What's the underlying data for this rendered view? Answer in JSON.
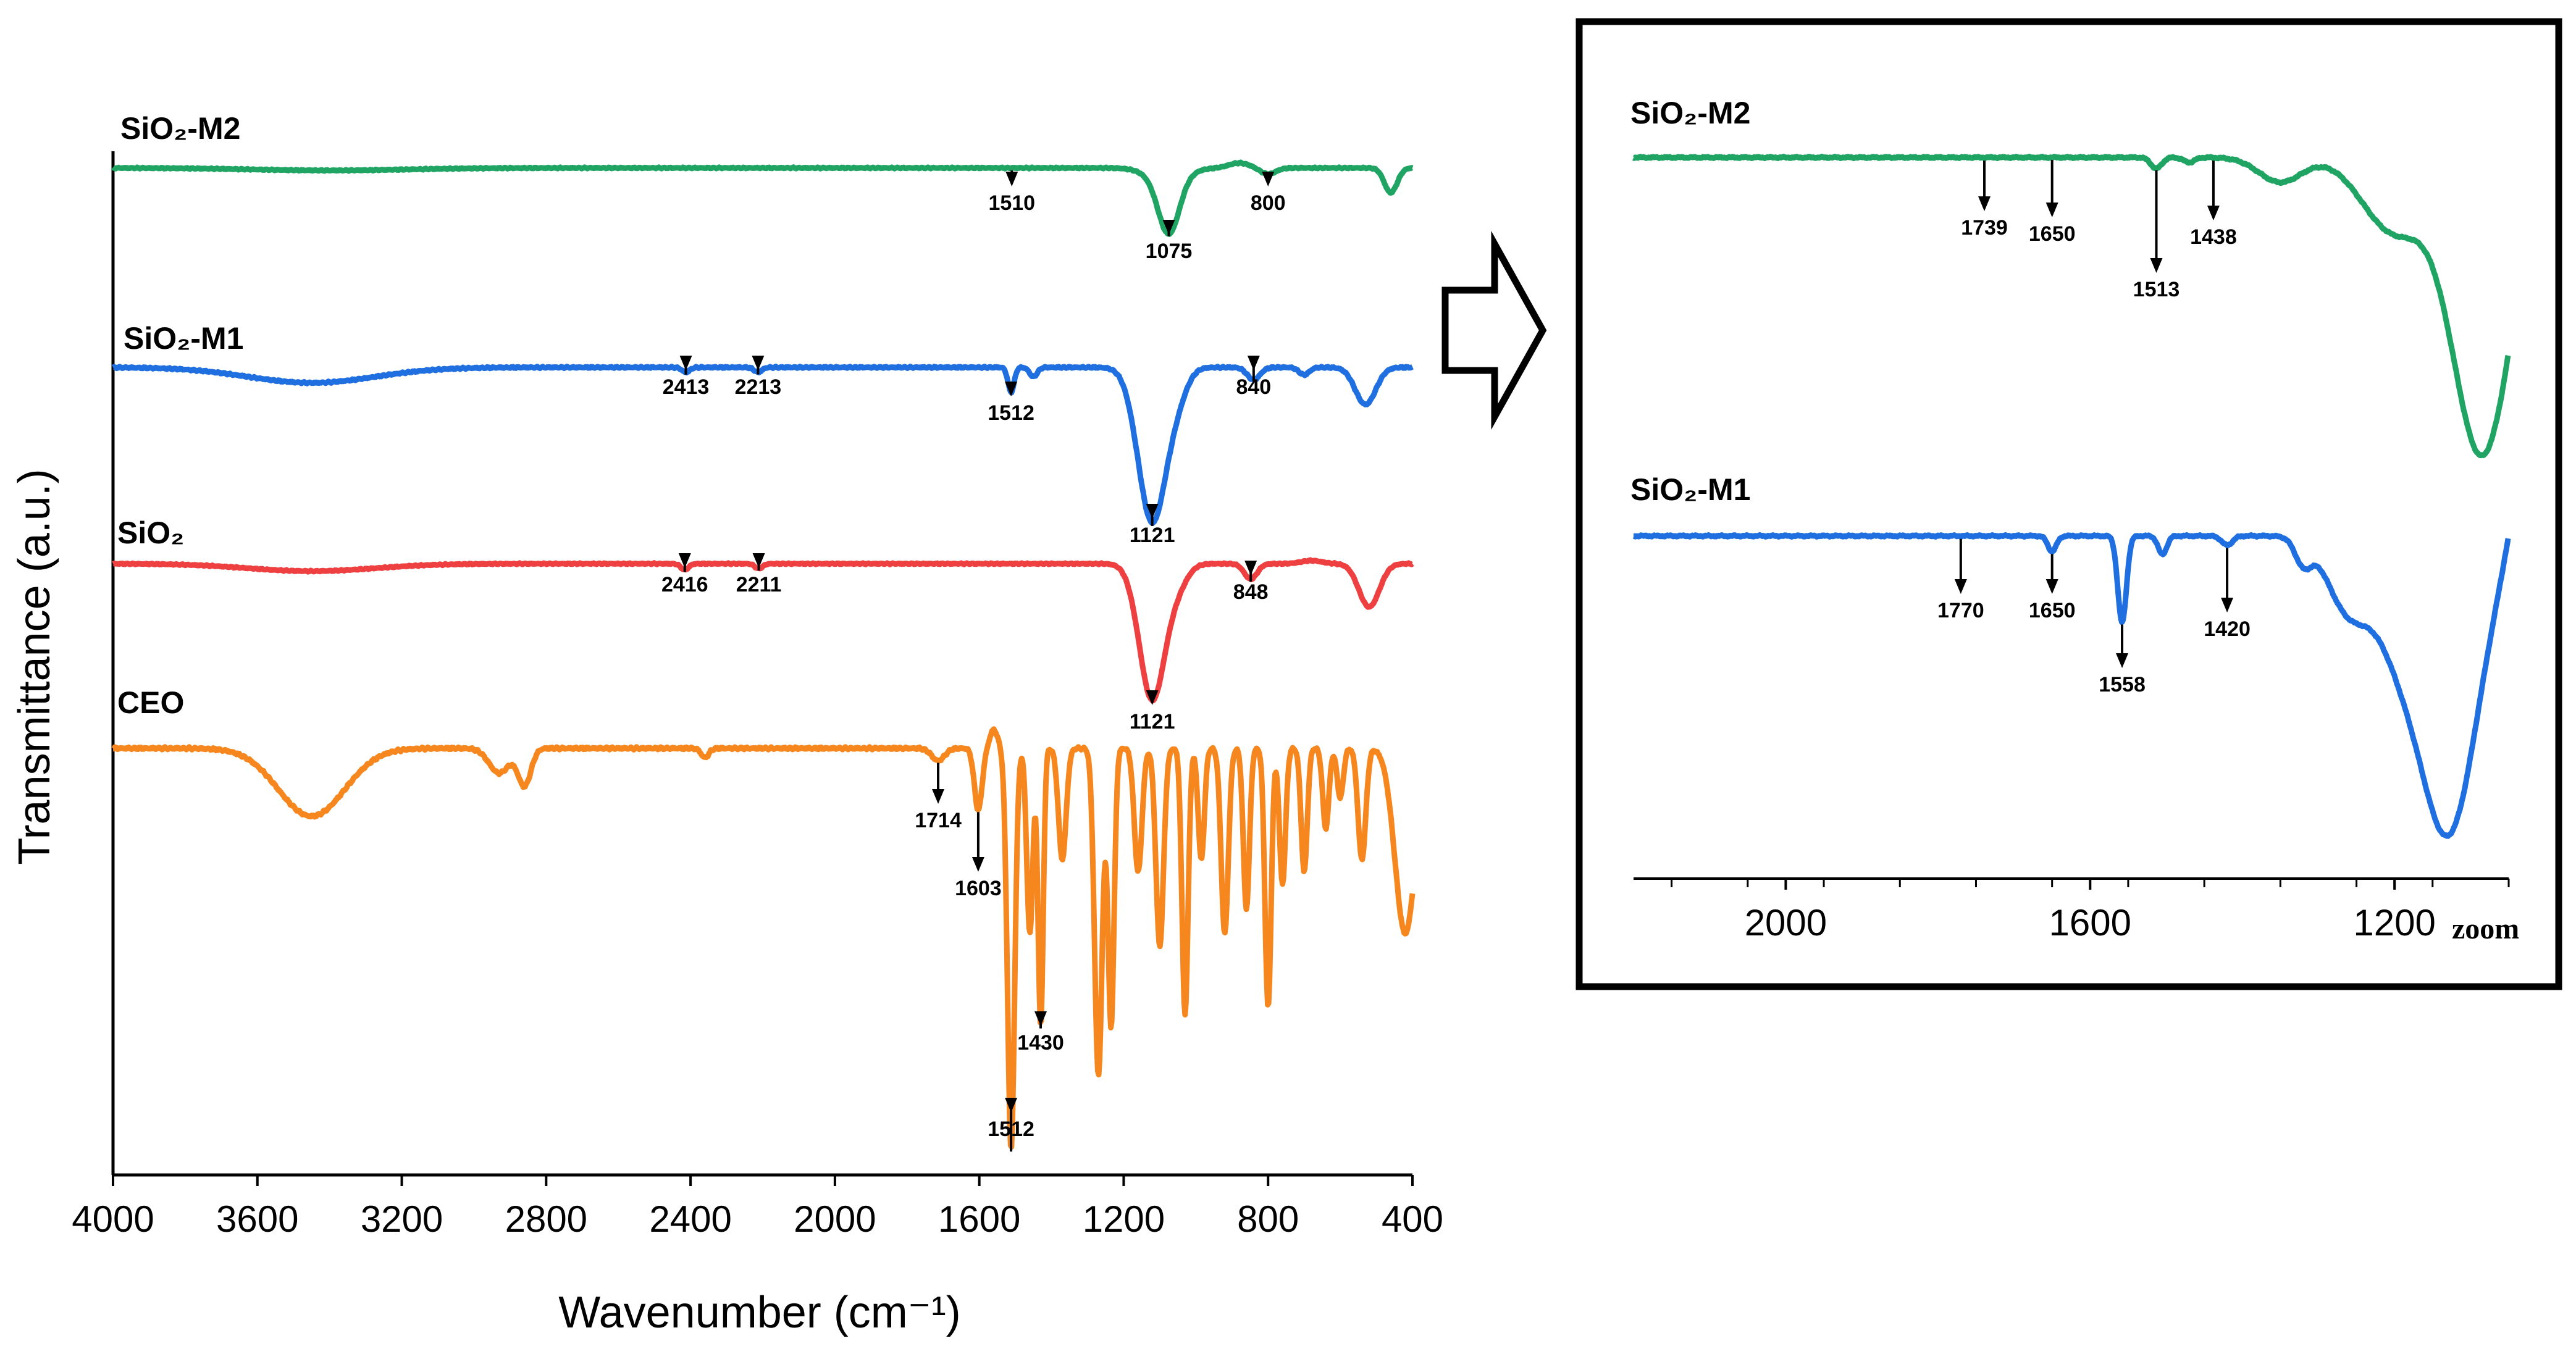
{
  "chart_data": [
    {
      "type": "line",
      "panel": "main",
      "xlabel": "Wavenumber (cm⁻¹)",
      "ylabel": "Transmittance (a.u.)",
      "xlim": [
        4000,
        400
      ],
      "x_ticks": [
        "4000",
        "3600",
        "3200",
        "2800",
        "2400",
        "2000",
        "1600",
        "1200",
        "800",
        "400"
      ],
      "series": [
        {
          "name": "SiO₂-M2",
          "color": "#1fa463",
          "peaks": [
            {
              "x": 1510,
              "label": "1510"
            },
            {
              "x": 1075,
              "label": "1075"
            },
            {
              "x": 800,
              "label": "800"
            }
          ]
        },
        {
          "name": "SiO₂-M1",
          "color": "#1f6fe0",
          "peaks": [
            {
              "x": 2413,
              "label": "2413"
            },
            {
              "x": 2213,
              "label": "2213"
            },
            {
              "x": 1512,
              "label": "1512"
            },
            {
              "x": 1121,
              "label": "1121"
            },
            {
              "x": 840,
              "label": "840"
            }
          ]
        },
        {
          "name": "SiO₂",
          "color": "#ee4040",
          "peaks": [
            {
              "x": 2416,
              "label": "2416"
            },
            {
              "x": 2211,
              "label": "2211"
            },
            {
              "x": 1121,
              "label": "1121"
            },
            {
              "x": 848,
              "label": "848"
            }
          ]
        },
        {
          "name": "CEO",
          "color": "#f6871f",
          "peaks": [
            {
              "x": 1714,
              "label": "1714"
            },
            {
              "x": 1603,
              "label": "1603"
            },
            {
              "x": 1430,
              "label": "1430"
            },
            {
              "x": 1512,
              "label": "1512"
            }
          ]
        }
      ]
    },
    {
      "type": "line",
      "panel": "zoom",
      "annotation": "zoom",
      "xlim": [
        2200,
        1050
      ],
      "x_ticks": [
        "2000",
        "1600",
        "1200"
      ],
      "series": [
        {
          "name": "SiO₂-M2",
          "color": "#1fa463",
          "peaks": [
            {
              "x": 1739,
              "label": "1739"
            },
            {
              "x": 1650,
              "label": "1650"
            },
            {
              "x": 1513,
              "label": "1513"
            },
            {
              "x": 1438,
              "label": "1438"
            }
          ]
        },
        {
          "name": "SiO₂-M1",
          "color": "#1f6fe0",
          "peaks": [
            {
              "x": 1770,
              "label": "1770"
            },
            {
              "x": 1650,
              "label": "1650"
            },
            {
              "x": 1558,
              "label": "1558"
            },
            {
              "x": 1420,
              "label": "1420"
            }
          ]
        }
      ]
    }
  ]
}
